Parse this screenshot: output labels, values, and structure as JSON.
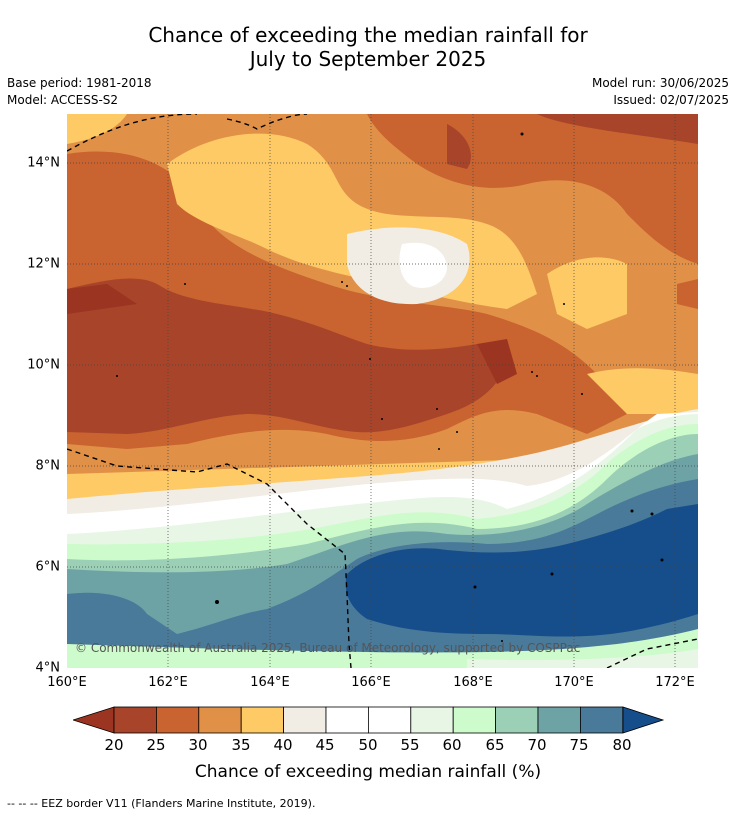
{
  "title": {
    "line1": "Chance of exceeding the median rainfall for",
    "line2": "July to September 2025"
  },
  "meta": {
    "base_period": "Base period: 1981-2018",
    "model": "Model: ACCESS-S2",
    "model_run": "Model run: 30/06/2025",
    "issued": "Issued: 02/07/2025"
  },
  "map": {
    "y_ticks": [
      "14°N",
      "12°N",
      "10°N",
      "8°N",
      "6°N",
      "4°N"
    ],
    "x_ticks": [
      "160°E",
      "162°E",
      "164°E",
      "166°E",
      "168°E",
      "170°E",
      "172°E"
    ],
    "copyright": "© Commonwealth of Australia 2025, Bureau of Meteorology, supported by COSPPac"
  },
  "colorbar": {
    "ticks": [
      "20",
      "25",
      "30",
      "35",
      "40",
      "45",
      "50",
      "55",
      "60",
      "65",
      "70",
      "75",
      "80"
    ],
    "under_color": "#9b3420",
    "over_color": "#154e8a",
    "colors": [
      "#a8442a",
      "#c9632f",
      "#e09147",
      "#fdca66",
      "#f1ece4",
      "#ffffff",
      "#ffffff",
      "#e8f6e6",
      "#cdfbcb",
      "#9bd0b6",
      "#6ea3a6",
      "#4a7a9a"
    ],
    "label": "Chance of exceeding median rainfall (%)"
  },
  "footnote": "--  --  -- EEZ border V11 (Flanders Marine Institute, 2019)."
}
